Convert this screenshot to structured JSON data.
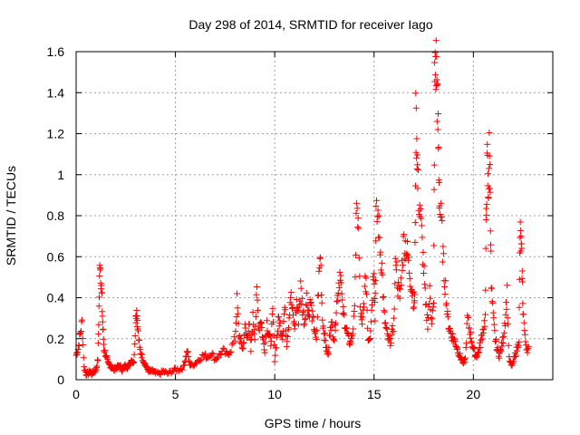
{
  "chart_data": {
    "type": "scatter",
    "title": "Day 298 of 2014, SRMTID for receiver Iago",
    "xlabel": "GPS time / hours",
    "ylabel": "SRMTID / TECUs",
    "xlim": [
      0,
      24
    ],
    "ylim": [
      0,
      1.6
    ],
    "xticks": [
      0,
      5,
      10,
      15,
      20
    ],
    "yticks": [
      0,
      0.2,
      0.4,
      0.6,
      0.8,
      1.0,
      1.2,
      1.4,
      1.6
    ],
    "xtick_labels": [
      "0",
      "5",
      "10",
      "15",
      "20"
    ],
    "ytick_labels": [
      "0",
      "0.2",
      "0.4",
      "0.6",
      "0.8",
      "1",
      "1.2",
      "1.4",
      "1.6"
    ],
    "grid": true,
    "marker": "+",
    "color": "#ff0000",
    "series": [
      {
        "name": "SRMTID",
        "x": [
          0.0,
          0.1,
          0.2,
          0.3,
          0.4,
          0.5,
          0.6,
          0.7,
          0.8,
          0.9,
          1.0,
          1.1,
          1.15,
          1.2,
          1.25,
          1.3,
          1.35,
          1.4,
          1.5,
          1.6,
          1.7,
          1.8,
          1.9,
          2.0,
          2.1,
          2.2,
          2.3,
          2.4,
          2.5,
          2.6,
          2.7,
          2.8,
          2.9,
          3.0,
          3.05,
          3.1,
          3.2,
          3.3,
          3.4,
          3.5,
          3.6,
          3.7,
          3.8,
          3.9,
          4.0,
          4.2,
          4.4,
          4.6,
          4.8,
          5.0,
          5.2,
          5.4,
          5.5,
          5.6,
          5.7,
          5.8,
          6.0,
          6.2,
          6.4,
          6.6,
          6.8,
          7.0,
          7.2,
          7.4,
          7.6,
          7.8,
          8.0,
          8.1,
          8.2,
          8.3,
          8.4,
          8.5,
          8.6,
          8.7,
          8.8,
          8.9,
          9.0,
          9.1,
          9.2,
          9.3,
          9.4,
          9.5,
          9.6,
          9.7,
          9.8,
          9.9,
          10.0,
          10.1,
          10.2,
          10.3,
          10.4,
          10.5,
          10.6,
          10.7,
          10.8,
          10.9,
          11.0,
          11.1,
          11.2,
          11.3,
          11.4,
          11.5,
          11.6,
          11.7,
          11.8,
          11.9,
          12.0,
          12.1,
          12.2,
          12.3,
          12.4,
          12.5,
          12.6,
          12.7,
          12.8,
          12.9,
          13.0,
          13.1,
          13.2,
          13.3,
          13.4,
          13.5,
          13.6,
          13.7,
          13.8,
          13.9,
          14.0,
          14.1,
          14.2,
          14.3,
          14.4,
          14.5,
          14.6,
          14.7,
          14.8,
          14.9,
          15.0,
          15.05,
          15.1,
          15.2,
          15.3,
          15.4,
          15.5,
          15.6,
          15.7,
          15.8,
          15.9,
          16.0,
          16.1,
          16.2,
          16.3,
          16.4,
          16.5,
          16.6,
          16.7,
          16.8,
          16.9,
          17.0,
          17.05,
          17.1,
          17.15,
          17.2,
          17.3,
          17.4,
          17.5,
          17.6,
          17.7,
          17.8,
          17.9,
          18.0,
          18.05,
          18.1,
          18.15,
          18.2,
          18.25,
          18.3,
          18.4,
          18.5,
          18.6,
          18.7,
          18.8,
          18.9,
          19.0,
          19.1,
          19.2,
          19.3,
          19.4,
          19.5,
          19.6,
          19.7,
          19.8,
          19.9,
          20.0,
          20.1,
          20.2,
          20.3,
          20.4,
          20.5,
          20.6,
          20.65,
          20.7,
          20.75,
          20.8,
          20.85,
          20.9,
          21.0,
          21.1,
          21.2,
          21.3,
          21.4,
          21.5,
          21.6,
          21.7,
          21.8,
          21.9,
          22.0,
          22.1,
          22.2,
          22.3,
          22.35,
          22.4,
          22.45,
          22.5,
          22.6,
          22.7
        ],
        "y": [
          0.12,
          0.15,
          0.22,
          0.28,
          0.06,
          0.03,
          0.03,
          0.04,
          0.03,
          0.04,
          0.05,
          0.1,
          0.35,
          0.6,
          0.5,
          0.38,
          0.25,
          0.15,
          0.12,
          0.08,
          0.07,
          0.06,
          0.05,
          0.06,
          0.06,
          0.07,
          0.05,
          0.06,
          0.07,
          0.06,
          0.08,
          0.1,
          0.08,
          0.3,
          0.34,
          0.25,
          0.15,
          0.12,
          0.09,
          0.07,
          0.05,
          0.04,
          0.04,
          0.04,
          0.03,
          0.03,
          0.04,
          0.03,
          0.04,
          0.05,
          0.05,
          0.06,
          0.1,
          0.14,
          0.08,
          0.07,
          0.08,
          0.1,
          0.12,
          0.11,
          0.13,
          0.1,
          0.12,
          0.14,
          0.12,
          0.15,
          0.2,
          0.38,
          0.22,
          0.18,
          0.15,
          0.25,
          0.2,
          0.28,
          0.14,
          0.3,
          0.22,
          0.42,
          0.25,
          0.3,
          0.2,
          0.15,
          0.28,
          0.22,
          0.18,
          0.32,
          0.1,
          0.2,
          0.3,
          0.25,
          0.22,
          0.35,
          0.18,
          0.28,
          0.42,
          0.32,
          0.25,
          0.38,
          0.3,
          0.45,
          0.35,
          0.28,
          0.4,
          0.32,
          0.38,
          0.3,
          0.25,
          0.18,
          0.45,
          0.62,
          0.3,
          0.22,
          0.15,
          0.12,
          0.28,
          0.25,
          0.2,
          0.35,
          0.45,
          0.55,
          0.35,
          0.3,
          0.25,
          0.2,
          0.18,
          0.22,
          0.3,
          0.75,
          0.82,
          0.35,
          0.25,
          0.4,
          0.5,
          0.2,
          0.22,
          0.38,
          0.58,
          0.3,
          0.78,
          0.8,
          0.65,
          0.55,
          0.32,
          0.25,
          0.2,
          0.18,
          0.22,
          0.28,
          0.62,
          0.45,
          0.4,
          0.55,
          0.68,
          0.65,
          0.6,
          0.52,
          0.45,
          0.38,
          0.4,
          1.25,
          1.2,
          0.95,
          0.85,
          0.7,
          0.55,
          0.35,
          0.28,
          0.42,
          0.3,
          0.35,
          1.42,
          1.55,
          1.5,
          1.3,
          1.1,
          0.85,
          0.75,
          0.55,
          0.45,
          0.3,
          0.25,
          0.22,
          0.2,
          0.18,
          0.15,
          0.12,
          0.1,
          0.08,
          0.1,
          0.3,
          0.25,
          0.2,
          0.15,
          0.12,
          0.12,
          0.15,
          0.2,
          0.25,
          0.3,
          0.85,
          1.05,
          0.9,
          1.1,
          0.95,
          0.45,
          0.3,
          0.2,
          0.15,
          0.12,
          0.15,
          0.2,
          0.3,
          0.42,
          0.1,
          0.07,
          0.08,
          0.12,
          0.15,
          0.2,
          0.72,
          0.65,
          0.55,
          0.35,
          0.2,
          0.15
        ]
      }
    ]
  }
}
